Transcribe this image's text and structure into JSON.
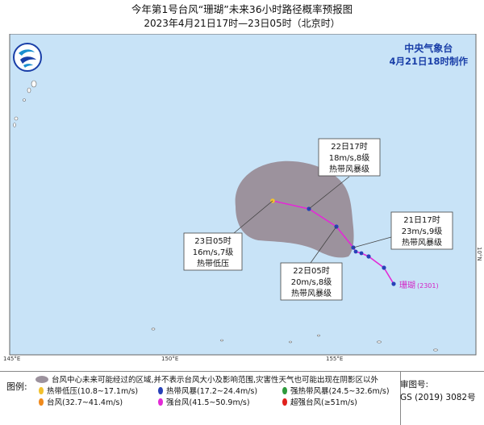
{
  "header": {
    "title": "今年第1号台风“珊瑚”未来36小时路径概率预报图",
    "subtitle": "2023年4月21日17时—23日05时（北京时）"
  },
  "agency": {
    "name": "中央气象台",
    "made": "4月21日18时制作"
  },
  "storm_label": "珊瑚",
  "storm_code": "(2301)",
  "forecast_points": [
    {
      "time": "22日17时",
      "wind": "18m/s,8级",
      "grade": "热带风暴级"
    },
    {
      "time": "21日17时",
      "wind": "23m/s,9级",
      "grade": "热带风暴级"
    },
    {
      "time": "23日05时",
      "wind": "16m/s,7级",
      "grade": "热带低压"
    },
    {
      "time": "22日05时",
      "wind": "20m/s,8级",
      "grade": "热带风暴级"
    }
  ],
  "axes": {
    "lon_labels": [
      "145°E",
      "150°E",
      "155°E"
    ],
    "lat_labels": [
      "10°N"
    ]
  },
  "legend": {
    "title": "图例:",
    "cone_text": "台风中心未来可能经过的区域,并不表示台风大小及影响范围,灾害性天气也可能出现在阴影区以外",
    "items": [
      {
        "label": "热带低压(10.8~17.1m/s)",
        "color": "#f2c12e"
      },
      {
        "label": "热带风暴(17.2~24.4m/s)",
        "color": "#2741b8"
      },
      {
        "label": "强热带风暴(24.5~32.6m/s)",
        "color": "#2e9a3c"
      },
      {
        "label": "台风(32.7~41.4m/s)",
        "color": "#f08a1c"
      },
      {
        "label": "强台风(41.5~50.9m/s)",
        "color": "#e32ad6"
      },
      {
        "label": "超强台风(≥51m/s)",
        "color": "#e0201c"
      }
    ]
  },
  "review": {
    "label": "审图号:",
    "code": "GS (2019) 3082号"
  },
  "colors": {
    "sea": "#c8e3f7",
    "cone": "#9c929d",
    "track": "#e32ad6",
    "agency": "#1a3fa8"
  }
}
